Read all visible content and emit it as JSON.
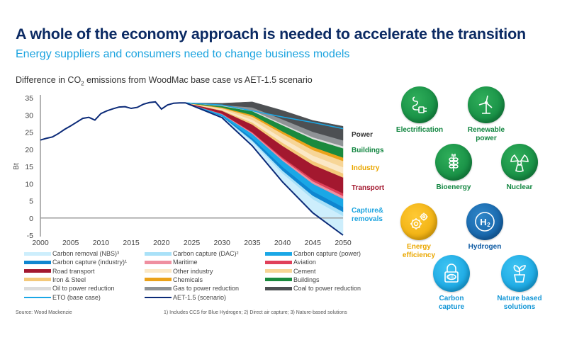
{
  "header": {
    "title": "A whole of the economy  approach is needed to accelerate the transition",
    "subtitle": "Energy suppliers and consumers need to change business models"
  },
  "chart_title": {
    "prefix": "Difference in CO",
    "sub": "2",
    "suffix": " emissions from WoodMac base case vs AET-1.5 scenario"
  },
  "chart_data": {
    "type": "area",
    "title": "Difference in CO2 emissions from WoodMac base case vs AET-1.5 scenario",
    "xlabel": "",
    "ylabel": "Bt",
    "xlim": [
      2000,
      2050
    ],
    "ylim": [
      -5,
      35
    ],
    "x_ticks": [
      "2000",
      "2005",
      "2010",
      "2015",
      "2020",
      "2025",
      "2030",
      "2035",
      "2040",
      "2045",
      "2050"
    ],
    "y_ticks": [
      "35",
      "30",
      "25",
      "20",
      "15",
      "10",
      "5",
      "0",
      "-5"
    ],
    "history": {
      "x": [
        2000,
        2001,
        2002,
        2003,
        2004,
        2005,
        2006,
        2007,
        2008,
        2009,
        2010,
        2011,
        2012,
        2013,
        2014,
        2015,
        2016,
        2017,
        2018,
        2019,
        2020,
        2021,
        2022,
        2023,
        2024
      ],
      "y": [
        22.7,
        23.2,
        23.6,
        24.6,
        25.8,
        26.8,
        27.9,
        29.0,
        29.3,
        28.5,
        30.4,
        31.2,
        31.8,
        32.3,
        32.4,
        31.9,
        32.2,
        33.1,
        33.6,
        33.8,
        31.7,
        32.9,
        33.4,
        33.5,
        33.5
      ]
    },
    "scenario_x": [
      2024,
      2030,
      2035,
      2040,
      2045,
      2050
    ],
    "eto_base_case": [
      33.5,
      32.9,
      31.2,
      29.4,
      27.8,
      26.0
    ],
    "aet_scenario": [
      33.5,
      29.2,
      21.0,
      10.5,
      1.5,
      -5.0
    ],
    "stack_order_top_down": [
      "coal",
      "gas",
      "oil",
      "buildings",
      "chemicals",
      "cement",
      "other_industry",
      "iron_steel",
      "road",
      "aviation",
      "maritime",
      "cc_power",
      "cc_industry",
      "cc_dac",
      "cr_nbs"
    ],
    "series": [
      {
        "key": "cr_nbs",
        "name": "Carbon removal (NBS)³",
        "color": "#cdeefc",
        "values": [
          0,
          0.3,
          1.2,
          2.5,
          4.0,
          5.6
        ]
      },
      {
        "key": "cc_dac",
        "name": "Carbon capture (DAC)²",
        "color": "#a9e1f8",
        "values": [
          0,
          0.1,
          0.4,
          0.8,
          1.0,
          1.2
        ]
      },
      {
        "key": "cc_industry",
        "name": "Carbon capture (industry)¹",
        "color": "#0f86d0",
        "values": [
          0,
          0.2,
          0.7,
          1.1,
          1.3,
          1.4
        ]
      },
      {
        "key": "cc_power",
        "name": "Carbon capture (power)",
        "color": "#1aa7e6",
        "values": [
          0,
          0.4,
          1.2,
          1.8,
          2.2,
          2.4
        ]
      },
      {
        "key": "maritime",
        "name": "Maritime",
        "color": "#ef8fa0",
        "values": [
          0,
          0.1,
          0.3,
          0.5,
          0.7,
          0.8
        ]
      },
      {
        "key": "aviation",
        "name": "Aviation",
        "color": "#e0405a",
        "values": [
          0,
          0.1,
          0.2,
          0.4,
          0.6,
          0.8
        ]
      },
      {
        "key": "road",
        "name": "Road transport",
        "color": "#a3182f",
        "values": [
          0,
          0.8,
          2.2,
          3.4,
          4.2,
          4.6
        ]
      },
      {
        "key": "iron_steel",
        "name": "Iron & Steel",
        "color": "#f4c97a",
        "values": [
          0,
          0.2,
          0.6,
          0.9,
          1.1,
          1.2
        ]
      },
      {
        "key": "other_industry",
        "name": "Other industry",
        "color": "#fbe8c6",
        "values": [
          0,
          0.3,
          0.8,
          1.3,
          1.6,
          1.8
        ]
      },
      {
        "key": "cement",
        "name": "Cement",
        "color": "#f7d596",
        "values": [
          0,
          0.3,
          0.9,
          1.3,
          1.6,
          1.8
        ]
      },
      {
        "key": "chemicals",
        "name": "Chemicals",
        "color": "#eba21a",
        "values": [
          0,
          0.2,
          0.5,
          0.7,
          0.9,
          1.0
        ]
      },
      {
        "key": "buildings",
        "name": "Buildings",
        "color": "#1a8a3e",
        "values": [
          0,
          0.4,
          1.1,
          1.8,
          2.3,
          2.7
        ]
      },
      {
        "key": "oil",
        "name": "Oil to power reduction",
        "color": "#dcdcdc",
        "values": [
          0,
          0.1,
          0.3,
          0.4,
          0.5,
          0.6
        ]
      },
      {
        "key": "gas",
        "name": "Gas to power reduction",
        "color": "#8f9396",
        "values": [
          0,
          0.2,
          0.8,
          1.3,
          1.6,
          1.7
        ]
      },
      {
        "key": "coal",
        "name": "Coal to power reduction",
        "color": "#4d5053",
        "values": [
          0,
          0.5,
          1.6,
          2.6,
          3.3,
          4.1
        ]
      }
    ],
    "lines": [
      {
        "key": "eto",
        "name": "ETO (base case)",
        "color": "#1aa7e6"
      },
      {
        "key": "aet",
        "name": "AET-1.5 (scenario)",
        "color": "#0b2a78"
      }
    ],
    "annotations": [
      {
        "label": "Power",
        "color": "#333333"
      },
      {
        "label": "Buildings",
        "color": "#10853f"
      },
      {
        "label": "Industry",
        "color": "#eaa700"
      },
      {
        "label": "Transport",
        "color": "#a3182f"
      },
      {
        "label": "Capture&",
        "color": "#1ba3df"
      },
      {
        "label": "removals",
        "color": "#1ba3df"
      }
    ]
  },
  "legend": [
    {
      "label": "Carbon removal (NBS)³",
      "color": "#cdeefc",
      "type": "area"
    },
    {
      "label": "Carbon capture (DAC)²",
      "color": "#a9e1f8",
      "type": "area"
    },
    {
      "label": "Carbon capture (power)",
      "color": "#1aa7e6",
      "type": "area"
    },
    {
      "label": "Carbon capture (industry)¹",
      "color": "#0f86d0",
      "type": "area"
    },
    {
      "label": "Maritime",
      "color": "#ef8fa0",
      "type": "area"
    },
    {
      "label": "Aviation",
      "color": "#e0405a",
      "type": "area"
    },
    {
      "label": "Road transport",
      "color": "#a3182f",
      "type": "area"
    },
    {
      "label": "Other industry",
      "color": "#fbe8c6",
      "type": "area"
    },
    {
      "label": "Cement",
      "color": "#f7d596",
      "type": "area"
    },
    {
      "label": "Iron & Steel",
      "color": "#f4c97a",
      "type": "area"
    },
    {
      "label": "Chemicals",
      "color": "#eba21a",
      "type": "area"
    },
    {
      "label": "Buildings",
      "color": "#1a8a3e",
      "type": "area"
    },
    {
      "label": "Oil to power reduction",
      "color": "#dcdcdc",
      "type": "area"
    },
    {
      "label": "Gas to power reduction",
      "color": "#8f9396",
      "type": "area"
    },
    {
      "label": "Coal to power reduction",
      "color": "#4d5053",
      "type": "area"
    },
    {
      "label": "ETO (base case)",
      "color": "#1aa7e6",
      "type": "line"
    },
    {
      "label": "AET-1.5 (scenario)",
      "color": "#0b2a78",
      "type": "line"
    }
  ],
  "footer": {
    "source": "Source: Wood Mackenzie",
    "notes": "1) Includes CCS for Blue Hydrogen; 2) Direct air capture; 3) Nature-based  solutions"
  },
  "technologies": [
    {
      "key": "electrification",
      "label_lines": [
        "Electrification"
      ],
      "icon": "plug-icon",
      "theme": "green"
    },
    {
      "key": "renewable",
      "label_lines": [
        "Renewable",
        "power"
      ],
      "icon": "wind-turbine-icon",
      "theme": "green"
    },
    {
      "key": "bioenergy",
      "label_lines": [
        "Bioenergy"
      ],
      "icon": "wheat-icon",
      "theme": "green"
    },
    {
      "key": "nuclear",
      "label_lines": [
        "Nuclear"
      ],
      "icon": "radiation-icon",
      "theme": "green"
    },
    {
      "key": "efficiency",
      "label_lines": [
        "Energy",
        "efficiency"
      ],
      "icon": "gears-icon",
      "theme": "yellow"
    },
    {
      "key": "hydrogen",
      "label_lines": [
        "Hydrogen"
      ],
      "icon": "h2-icon",
      "theme": "navy",
      "icon_text": "H₂"
    },
    {
      "key": "carbon_capture",
      "label_lines": [
        "Carbon",
        "capture"
      ],
      "icon": "co2-lock-icon",
      "theme": "sky",
      "icon_text": "CO₂"
    },
    {
      "key": "nature",
      "label_lines": [
        "Nature based",
        "solutions"
      ],
      "icon": "plant-pot-icon",
      "theme": "sky"
    }
  ]
}
